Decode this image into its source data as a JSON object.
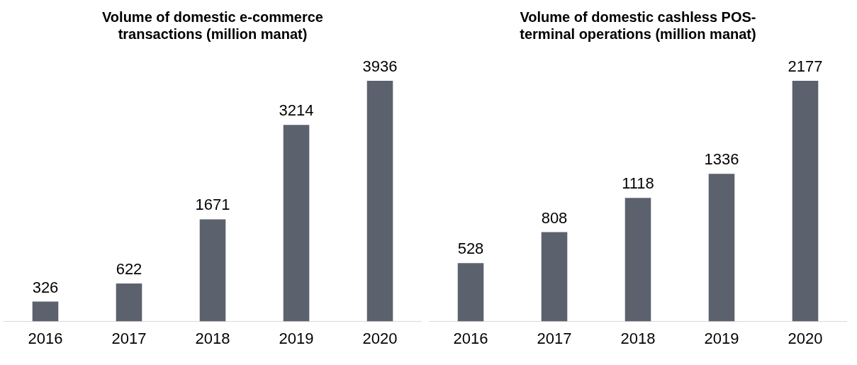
{
  "chart_data": [
    {
      "type": "bar",
      "title": "Volume of domestic e-commerce transactions (million manat)",
      "categories": [
        "2016",
        "2017",
        "2018",
        "2019",
        "2020"
      ],
      "values": [
        326,
        622,
        1671,
        3214,
        3936
      ],
      "color": "#5b626d",
      "data_labels": true,
      "grid": false,
      "legend": false,
      "tick_labels": "x"
    },
    {
      "type": "bar",
      "title": "Volume of domestic cashless POS-terminal operations (million manat)",
      "categories": [
        "2016",
        "2017",
        "2018",
        "2019",
        "2020"
      ],
      "values": [
        528,
        808,
        1118,
        1336,
        2177
      ],
      "color": "#5b626d",
      "data_labels": true,
      "grid": false,
      "legend": false,
      "tick_labels": "x"
    }
  ]
}
